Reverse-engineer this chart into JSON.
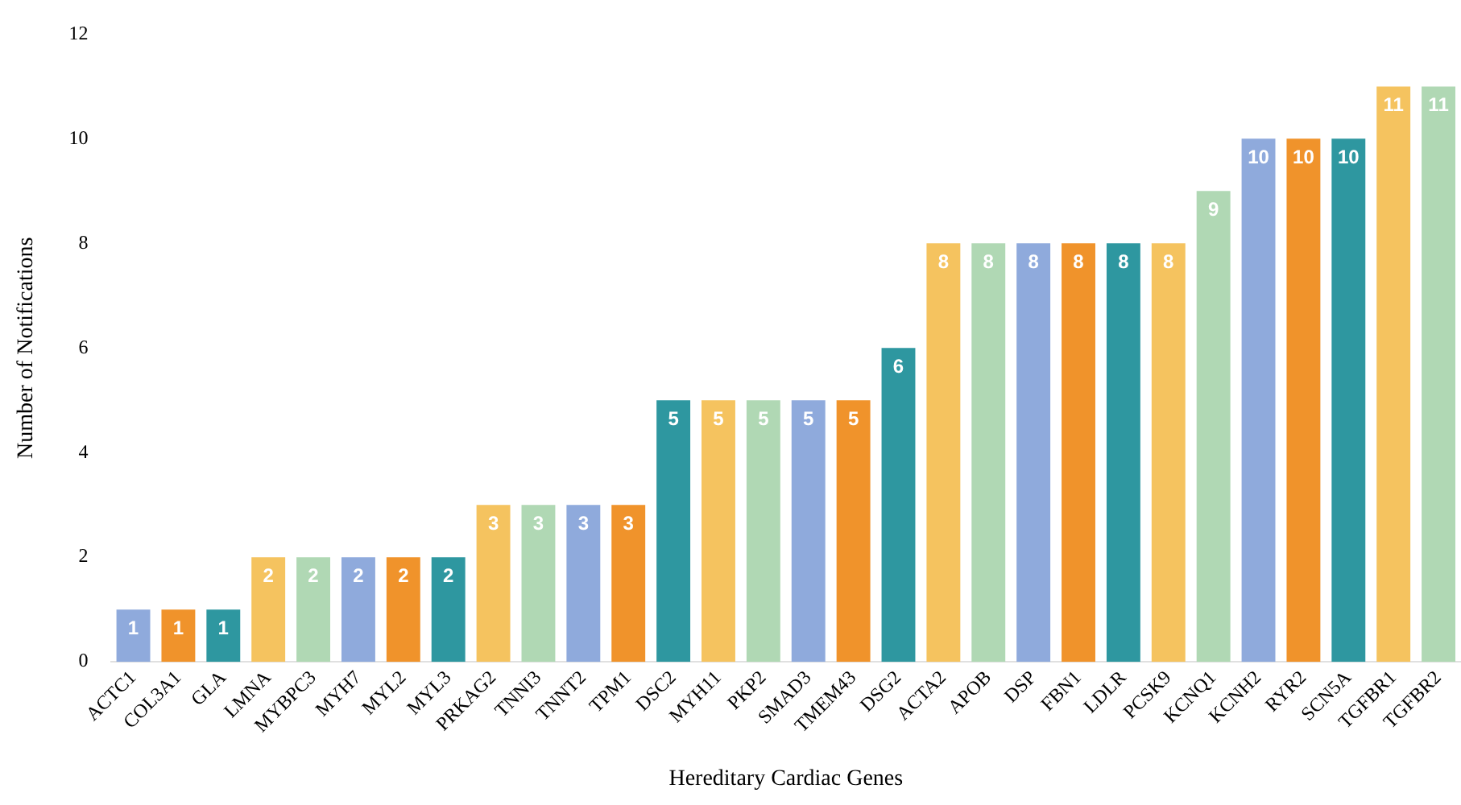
{
  "chart_data": {
    "type": "bar",
    "categories": [
      "ACTC1",
      "COL3A1",
      "GLA",
      "LMNA",
      "MYBPC3",
      "MYH7",
      "MYL2",
      "MYL3",
      "PRKAG2",
      "TNNI3",
      "TNNT2",
      "TPM1",
      "DSC2",
      "MYH11",
      "PKP2",
      "SMAD3",
      "TMEM43",
      "DSG2",
      "ACTA2",
      "APOB",
      "DSP",
      "FBN1",
      "LDLR",
      "PCSK9",
      "KCNQ1",
      "KCNH2",
      "RYR2",
      "SCN5A",
      "TGFBR1",
      "TGFBR2"
    ],
    "values": [
      1,
      1,
      1,
      2,
      2,
      2,
      2,
      2,
      3,
      3,
      3,
      3,
      5,
      5,
      5,
      5,
      5,
      6,
      8,
      8,
      8,
      8,
      8,
      8,
      9,
      10,
      10,
      10,
      11,
      11
    ],
    "colors": [
      "#8faadc",
      "#f0932b",
      "#2e97a0",
      "#f5c35f",
      "#b0d8b4",
      "#8faadc",
      "#f0932b",
      "#2e97a0",
      "#f5c35f",
      "#b0d8b4",
      "#8faadc",
      "#f0932b",
      "#2e97a0",
      "#f5c35f",
      "#b0d8b4",
      "#8faadc",
      "#f0932b",
      "#2e97a0",
      "#f5c35f",
      "#b0d8b4",
      "#8faadc",
      "#f0932b",
      "#2e97a0",
      "#f5c35f",
      "#b0d8b4",
      "#8faadc",
      "#f0932b",
      "#2e97a0",
      "#f5c35f",
      "#b0d8b4"
    ],
    "xlabel": "Hereditary Cardiac Genes",
    "ylabel": "Number of Notifications",
    "ylim": [
      0,
      12
    ],
    "yticks": [
      0,
      2,
      4,
      6,
      8,
      10,
      12
    ],
    "grid": false,
    "legend": false,
    "data_labels": true
  }
}
